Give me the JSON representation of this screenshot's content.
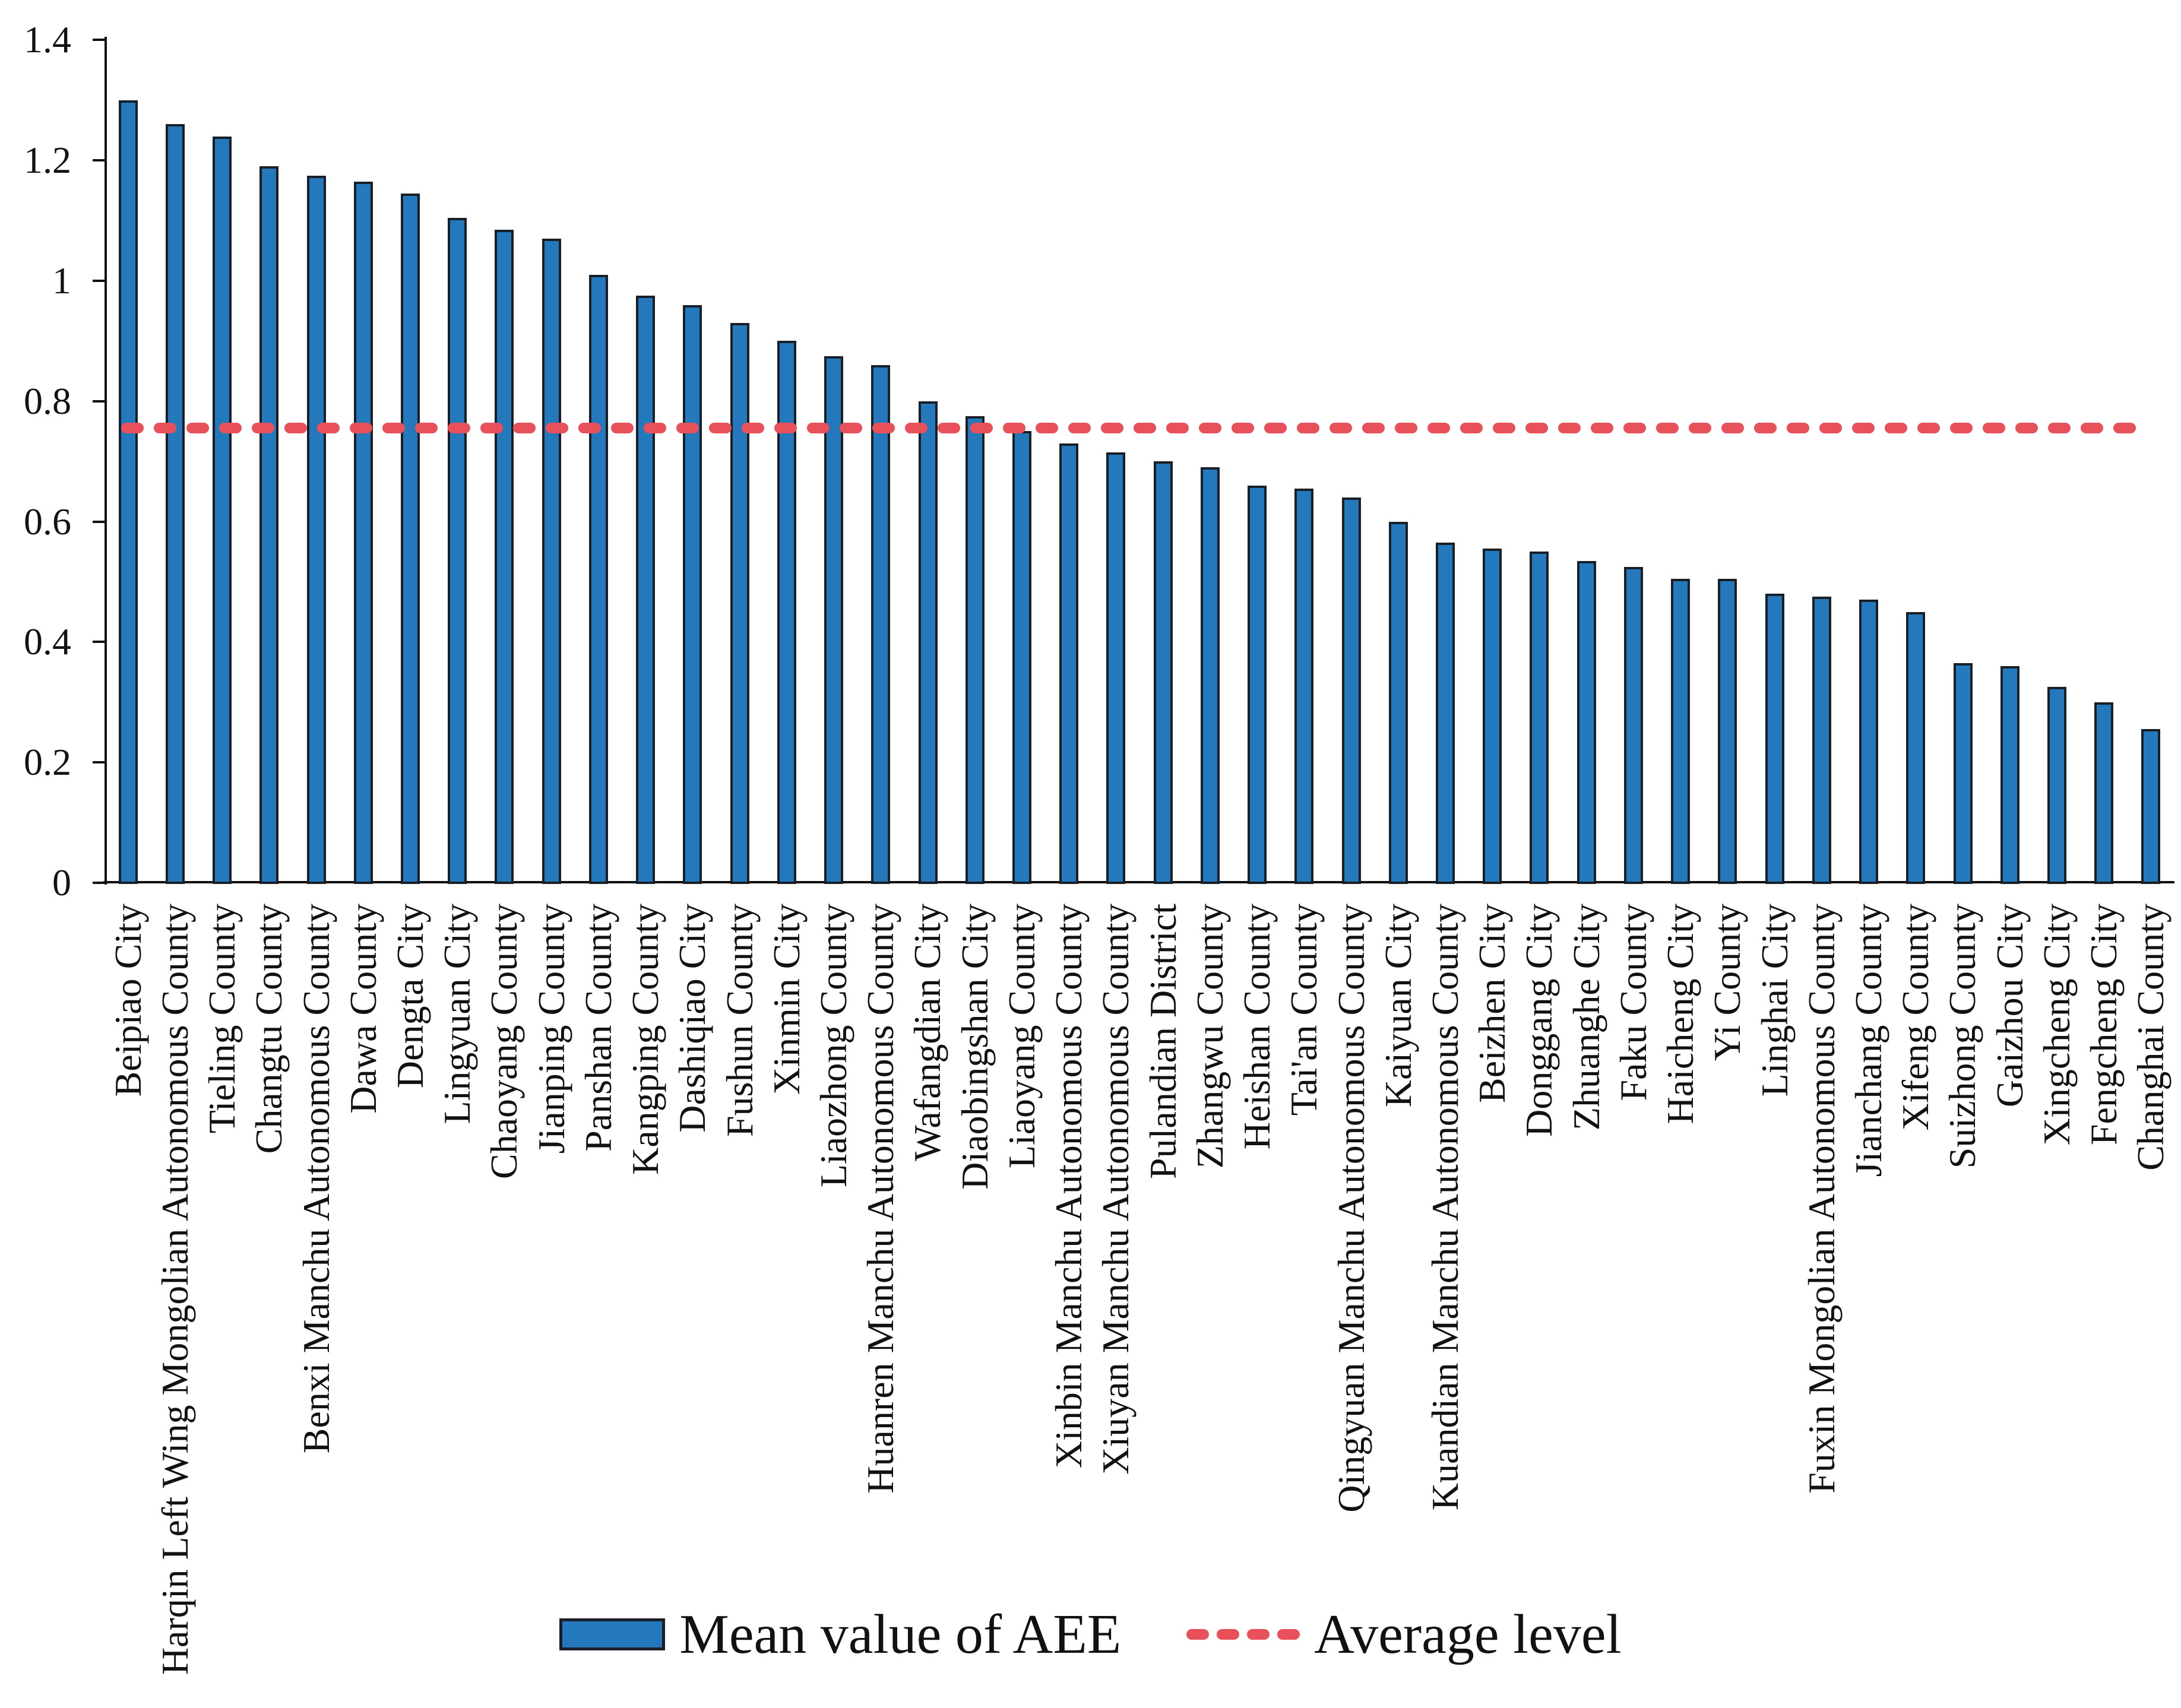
{
  "chart_data": {
    "type": "bar",
    "title": "",
    "xlabel": "",
    "ylabel": "",
    "grid": false,
    "legend_position": "bottom",
    "ylim": [
      0,
      1.4
    ],
    "yticks": [
      0,
      0.2,
      0.4,
      0.6,
      0.8,
      1,
      1.2,
      1.4
    ],
    "ytick_labels": [
      "0",
      "0.2",
      "0.4",
      "0.6",
      "0.8",
      "1",
      "1.2",
      "1.4"
    ],
    "categories": [
      "Beipiao City",
      "Harqin Left Wing Mongolian Autonomous County",
      "Tieling County",
      "Changtu County",
      "Benxi Manchu Autonomous County",
      "Dawa County",
      "Dengta City",
      "Lingyuan City",
      "Chaoyang County",
      "Jianping County",
      "Panshan County",
      "Kangping County",
      "Dashiqiao City",
      "Fushun County",
      "Xinmin City",
      "Liaozhong County",
      "Huanren Manchu Autonomous County",
      "Wafangdian City",
      "Diaobingshan City",
      "Liaoyang County",
      "Xinbin Manchu Autonomous County",
      "Xiuyan Manchu Autonomous County",
      "Pulandian District",
      "Zhangwu County",
      "Heishan County",
      "Tai'an County",
      "Qingyuan Manchu Autonomous County",
      "Kaiyuan City",
      "Kuandian Manchu Autonomous County",
      "Beizhen City",
      "Donggang City",
      "Zhuanghe City",
      "Faku County",
      "Haicheng City",
      "Yi County",
      "Linghai City",
      "Fuxin Mongolian Autonomous County",
      "Jianchang County",
      "Xifeng County",
      "Suizhong County",
      "Gaizhou City",
      "Xingcheng City",
      "Fengcheng City",
      "Changhai County"
    ],
    "series": [
      {
        "name": "Mean value of AEE",
        "values": [
          1.3,
          1.26,
          1.24,
          1.19,
          1.175,
          1.165,
          1.145,
          1.105,
          1.085,
          1.07,
          1.01,
          0.975,
          0.96,
          0.93,
          0.9,
          0.875,
          0.86,
          0.8,
          0.775,
          0.75,
          0.73,
          0.715,
          0.7,
          0.69,
          0.66,
          0.655,
          0.64,
          0.6,
          0.565,
          0.555,
          0.55,
          0.535,
          0.525,
          0.505,
          0.505,
          0.48,
          0.475,
          0.47,
          0.45,
          0.365,
          0.36,
          0.325,
          0.3,
          0.255
        ]
      }
    ],
    "average_line": {
      "label": "Average level",
      "value": 0.755
    },
    "legend": [
      {
        "label": "Mean value of AEE",
        "marker": "bar"
      },
      {
        "label": "Average level",
        "marker": "dashed-line"
      }
    ],
    "colors": {
      "bar_fill": "#2379BC",
      "bar_border": "#191F26",
      "average_line": "#E8515A",
      "axis": "#111111"
    }
  }
}
